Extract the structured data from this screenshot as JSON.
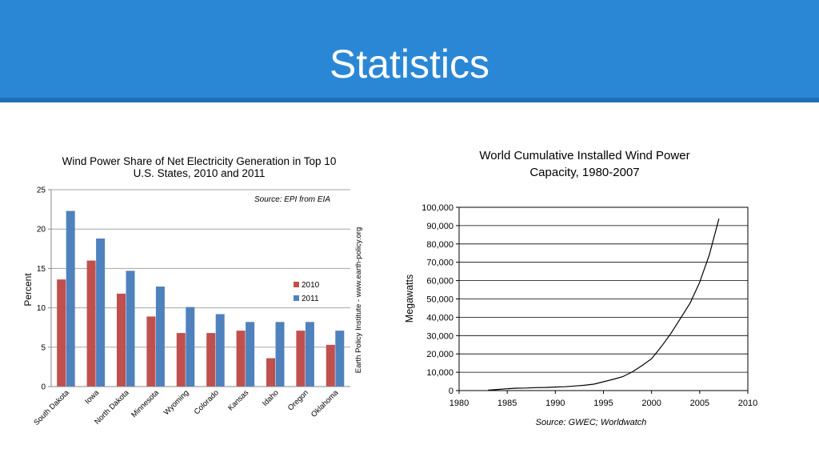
{
  "slide": {
    "title": "Statistics",
    "colors": {
      "header": "#2a87d6",
      "header_border": "#1e6fb4"
    }
  },
  "chart_data": [
    {
      "type": "bar",
      "title_lines": [
        "Wind Power Share of Net Electricity Generation in Top 10",
        "U.S. States, 2010 and 2011"
      ],
      "ylabel": "Percent",
      "xlabel": "",
      "source": "Source: EPI from EIA",
      "side_note": "Earth Policy Institute - www.earth-policy.org",
      "ylim": [
        0,
        25
      ],
      "yticks": [
        0,
        5,
        10,
        15,
        20,
        25
      ],
      "grid": true,
      "legend_position": "right",
      "categories": [
        "South Dakota",
        "Iowa",
        "North Dakota",
        "Minnesota",
        "Wyoming",
        "Colorado",
        "Kansas",
        "Idaho",
        "Oregon",
        "Oklahoma"
      ],
      "series": [
        {
          "name": "2010",
          "color": "#c0504d",
          "values": [
            13.6,
            16.0,
            11.8,
            8.9,
            6.8,
            6.8,
            7.1,
            3.6,
            7.1,
            5.3
          ]
        },
        {
          "name": "2011",
          "color": "#4f81bd",
          "values": [
            22.3,
            18.8,
            14.7,
            12.7,
            10.1,
            9.2,
            8.2,
            8.2,
            8.2,
            7.1
          ]
        }
      ]
    },
    {
      "type": "line",
      "title_lines": [
        "World Cumulative Installed Wind Power",
        "Capacity, 1980-2007"
      ],
      "ylabel": "Megawatts",
      "xlabel": "",
      "source": "Source: GWEC; Worldwatch",
      "xlim": [
        1980,
        2010
      ],
      "ylim": [
        0,
        100000
      ],
      "xticks": [
        1980,
        1985,
        1990,
        1995,
        2000,
        2005,
        2010
      ],
      "yticks": [
        0,
        10000,
        20000,
        30000,
        40000,
        50000,
        60000,
        70000,
        80000,
        90000,
        100000
      ],
      "ytick_labels": [
        "0",
        "10,000",
        "20,000",
        "30,000",
        "40,000",
        "50,000",
        "60,000",
        "70,000",
        "80,000",
        "90,000",
        "100,000"
      ],
      "grid": true,
      "x": [
        1983,
        1984,
        1985,
        1986,
        1987,
        1988,
        1989,
        1990,
        1991,
        1992,
        1993,
        1994,
        1995,
        1996,
        1997,
        1998,
        1999,
        2000,
        2001,
        2002,
        2003,
        2004,
        2005,
        2006,
        2007
      ],
      "y": [
        200,
        600,
        1000,
        1300,
        1400,
        1600,
        1700,
        1900,
        2100,
        2500,
        2900,
        3500,
        4800,
        6100,
        7600,
        10200,
        13600,
        17400,
        23900,
        31100,
        39400,
        47700,
        59100,
        74100,
        93800
      ]
    }
  ]
}
